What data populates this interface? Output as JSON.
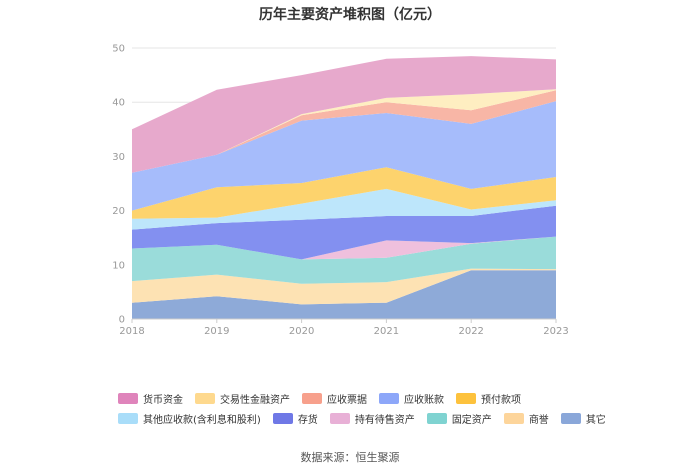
{
  "chart_data": {
    "type": "area",
    "stacked": true,
    "title": "历年主要资产堆积图（亿元）",
    "categories": [
      "2018",
      "2019",
      "2020",
      "2021",
      "2022",
      "2023"
    ],
    "ylim": [
      0,
      50
    ],
    "yticks": [
      "0",
      "10",
      "20",
      "30",
      "40",
      "50"
    ],
    "grid": true,
    "legend_position": "bottom",
    "series": [
      {
        "name": "其它",
        "color": "#8eaad8",
        "values": [
          3.0,
          4.2,
          2.7,
          3.0,
          9.0,
          9.0
        ]
      },
      {
        "name": "商誉",
        "color": "#fde2b3",
        "values": [
          4.0,
          4.0,
          3.8,
          3.8,
          0.3,
          0.2
        ]
      },
      {
        "name": "固定资产",
        "color": "#9adcda",
        "values": [
          6.0,
          5.5,
          4.5,
          4.5,
          4.6,
          6.0
        ]
      },
      {
        "name": "持有待售资产",
        "color": "#efc0dd",
        "values": [
          0,
          0,
          0,
          3.2,
          0.1,
          0
        ]
      },
      {
        "name": "存货",
        "color": "#8390f0",
        "values": [
          3.5,
          4.0,
          7.3,
          4.5,
          5.0,
          5.7
        ]
      },
      {
        "name": "其他应收款(含利息和股利)",
        "color": "#bde6fb",
        "values": [
          2.0,
          1.0,
          3.0,
          5.0,
          1.2,
          1.0
        ]
      },
      {
        "name": "预付款项",
        "color": "#fdd36d",
        "values": [
          1.5,
          5.6,
          3.8,
          4.0,
          3.8,
          4.3
        ]
      },
      {
        "name": "应收账款",
        "color": "#a6bcfb",
        "values": [
          7.0,
          6.0,
          11.5,
          10.0,
          12.0,
          14.0
        ]
      },
      {
        "name": "应收票据",
        "color": "#f8b6a6",
        "values": [
          0,
          0,
          1.0,
          2.0,
          2.5,
          2.0
        ]
      },
      {
        "name": "交易性金融资产",
        "color": "#feeec1",
        "values": [
          0,
          0,
          0.2,
          0.8,
          3.0,
          0.2
        ]
      },
      {
        "name": "货币资金",
        "color": "#e7a9cc",
        "values": [
          8.0,
          12.0,
          7.2,
          7.2,
          7.0,
          5.5
        ]
      }
    ]
  },
  "legend": [
    {
      "name": "货币资金",
      "color": "#df84bb"
    },
    {
      "name": "交易性金融资产",
      "color": "#fed98e"
    },
    {
      "name": "应收票据",
      "color": "#f7a08c"
    },
    {
      "name": "应收账款",
      "color": "#8da7f9"
    },
    {
      "name": "预付款项",
      "color": "#fdc23d"
    },
    {
      "name": "其他应收款(含利息和股利)",
      "color": "#a9ddf9"
    },
    {
      "name": "存货",
      "color": "#6f78e6"
    },
    {
      "name": "持有待售资产",
      "color": "#e8b0d6"
    },
    {
      "name": "固定资产",
      "color": "#7fd3d1"
    },
    {
      "name": "商誉",
      "color": "#fdd59b"
    },
    {
      "name": "其它",
      "color": "#8aa7d9"
    }
  ],
  "source": "数据来源：恒生聚源"
}
